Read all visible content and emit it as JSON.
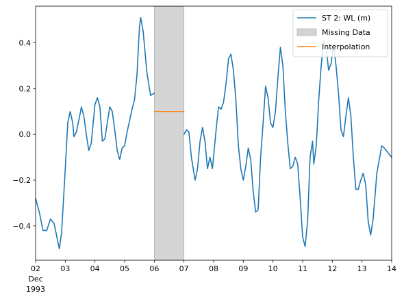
{
  "chart_data": {
    "type": "line",
    "title": "",
    "xlabel": "",
    "ylabel": "",
    "x_ticks": [
      {
        "day": 2,
        "label": "02",
        "sub1": "Dec",
        "sub2": "1993"
      },
      {
        "day": 3,
        "label": "03"
      },
      {
        "day": 4,
        "label": "04"
      },
      {
        "day": 5,
        "label": "05"
      },
      {
        "day": 6,
        "label": "06"
      },
      {
        "day": 7,
        "label": "07"
      },
      {
        "day": 8,
        "label": "08"
      },
      {
        "day": 9,
        "label": "09"
      },
      {
        "day": 10,
        "label": "10"
      },
      {
        "day": 11,
        "label": "11"
      },
      {
        "day": 12,
        "label": "12"
      },
      {
        "day": 13,
        "label": "13"
      },
      {
        "day": 14,
        "label": "14"
      }
    ],
    "y_ticks": [
      {
        "value": -0.4,
        "label": "−0.4"
      },
      {
        "value": -0.2,
        "label": "−0.2"
      },
      {
        "value": 0.0,
        "label": "0.0"
      },
      {
        "value": 0.2,
        "label": "0.2"
      },
      {
        "value": 0.4,
        "label": "0.4"
      }
    ],
    "xlim": [
      "1993-12-02",
      "1993-12-14"
    ],
    "ylim": [
      -0.55,
      0.56
    ],
    "legend_position": "top-right",
    "series": [
      {
        "name": "ST 2: WL (m)",
        "color": "#1f77b4",
        "segments": [
          [
            [
              "1993-12-02 00:00",
              -0.28
            ],
            [
              "1993-12-02 03:00",
              -0.34
            ],
            [
              "1993-12-02 06:00",
              -0.42
            ],
            [
              "1993-12-02 09:00",
              -0.42
            ],
            [
              "1993-12-02 12:00",
              -0.37
            ],
            [
              "1993-12-02 15:00",
              -0.39
            ],
            [
              "1993-12-02 18:00",
              -0.47
            ],
            [
              "1993-12-02 19:12",
              -0.5
            ],
            [
              "1993-12-02 21:00",
              -0.43
            ],
            [
              "1993-12-03 00:00",
              -0.15
            ],
            [
              "1993-12-03 02:00",
              0.05
            ],
            [
              "1993-12-03 04:00",
              0.1
            ],
            [
              "1993-12-03 06:00",
              0.05
            ],
            [
              "1993-12-03 07:00",
              -0.01
            ],
            [
              "1993-12-03 09:00",
              0.01
            ],
            [
              "1993-12-03 12:00",
              0.09
            ],
            [
              "1993-12-03 13:00",
              0.12
            ],
            [
              "1993-12-03 15:00",
              0.08
            ],
            [
              "1993-12-03 17:00",
              0.0
            ],
            [
              "1993-12-03 19:00",
              -0.07
            ],
            [
              "1993-12-03 21:00",
              -0.04
            ],
            [
              "1993-12-04 00:00",
              0.13
            ],
            [
              "1993-12-04 02:00",
              0.16
            ],
            [
              "1993-12-04 04:00",
              0.12
            ],
            [
              "1993-12-04 06:00",
              -0.03
            ],
            [
              "1993-12-04 08:00",
              -0.02
            ],
            [
              "1993-12-04 10:00",
              0.05
            ],
            [
              "1993-12-04 12:00",
              0.12
            ],
            [
              "1993-12-04 14:00",
              0.1
            ],
            [
              "1993-12-04 16:00",
              0.02
            ],
            [
              "1993-12-04 18:00",
              -0.07
            ],
            [
              "1993-12-04 20:00",
              -0.11
            ],
            [
              "1993-12-04 22:00",
              -0.06
            ],
            [
              "1993-12-05 00:00",
              -0.05
            ],
            [
              "1993-12-05 02:00",
              0.01
            ],
            [
              "1993-12-05 04:00",
              0.06
            ],
            [
              "1993-12-05 06:00",
              0.11
            ],
            [
              "1993-12-05 08:00",
              0.15
            ],
            [
              "1993-12-05 10:00",
              0.26
            ],
            [
              "1993-12-05 12:00",
              0.47
            ],
            [
              "1993-12-05 13:00",
              0.51
            ],
            [
              "1993-12-05 15:00",
              0.45
            ],
            [
              "1993-12-05 18:00",
              0.27
            ],
            [
              "1993-12-05 21:00",
              0.17
            ],
            [
              "1993-12-06 00:00",
              0.18
            ]
          ],
          [
            [
              "1993-12-07 00:00",
              0.0
            ],
            [
              "1993-12-07 02:00",
              0.02
            ],
            [
              "1993-12-07 04:00",
              0.01
            ],
            [
              "1993-12-07 06:00",
              -0.1
            ],
            [
              "1993-12-07 09:00",
              -0.2
            ],
            [
              "1993-12-07 11:00",
              -0.15
            ],
            [
              "1993-12-07 13:00",
              -0.03
            ],
            [
              "1993-12-07 15:00",
              0.03
            ],
            [
              "1993-12-07 17:00",
              -0.03
            ],
            [
              "1993-12-07 19:00",
              -0.15
            ],
            [
              "1993-12-07 21:00",
              -0.1
            ],
            [
              "1993-12-07 23:00",
              -0.15
            ],
            [
              "1993-12-08 02:00",
              0.02
            ],
            [
              "1993-12-08 04:00",
              0.12
            ],
            [
              "1993-12-08 06:00",
              0.11
            ],
            [
              "1993-12-08 08:00",
              0.14
            ],
            [
              "1993-12-08 10:00",
              0.22
            ],
            [
              "1993-12-08 12:00",
              0.33
            ],
            [
              "1993-12-08 14:00",
              0.35
            ],
            [
              "1993-12-08 16:00",
              0.28
            ],
            [
              "1993-12-08 18:00",
              0.15
            ],
            [
              "1993-12-08 20:00",
              -0.05
            ],
            [
              "1993-12-08 22:00",
              -0.15
            ],
            [
              "1993-12-09 00:00",
              -0.2
            ],
            [
              "1993-12-09 02:00",
              -0.14
            ],
            [
              "1993-12-09 04:00",
              -0.06
            ],
            [
              "1993-12-09 06:00",
              -0.11
            ],
            [
              "1993-12-09 08:00",
              -0.25
            ],
            [
              "1993-12-09 10:00",
              -0.34
            ],
            [
              "1993-12-09 12:00",
              -0.33
            ],
            [
              "1993-12-09 14:00",
              -0.1
            ],
            [
              "1993-12-09 16:00",
              0.05
            ],
            [
              "1993-12-09 18:00",
              0.21
            ],
            [
              "1993-12-09 20:00",
              0.16
            ],
            [
              "1993-12-09 22:00",
              0.05
            ],
            [
              "1993-12-10 00:00",
              0.03
            ],
            [
              "1993-12-10 02:00",
              0.1
            ],
            [
              "1993-12-10 04:00",
              0.25
            ],
            [
              "1993-12-10 06:00",
              0.38
            ],
            [
              "1993-12-10 08:00",
              0.3
            ],
            [
              "1993-12-10 10:00",
              0.1
            ],
            [
              "1993-12-10 12:00",
              -0.04
            ],
            [
              "1993-12-10 14:00",
              -0.15
            ],
            [
              "1993-12-10 16:00",
              -0.14
            ],
            [
              "1993-12-10 18:00",
              -0.1
            ],
            [
              "1993-12-10 20:00",
              -0.13
            ],
            [
              "1993-12-10 22:00",
              -0.28
            ],
            [
              "1993-12-11 00:00",
              -0.45
            ],
            [
              "1993-12-11 02:00",
              -0.49
            ],
            [
              "1993-12-11 04:00",
              -0.38
            ],
            [
              "1993-12-11 06:00",
              -0.1
            ],
            [
              "1993-12-11 08:00",
              -0.03
            ],
            [
              "1993-12-11 09:00",
              -0.13
            ],
            [
              "1993-12-11 11:00",
              -0.05
            ],
            [
              "1993-12-11 13:00",
              0.15
            ],
            [
              "1993-12-11 15:00",
              0.3
            ],
            [
              "1993-12-11 17:00",
              0.41
            ],
            [
              "1993-12-11 19:00",
              0.38
            ],
            [
              "1993-12-11 21:00",
              0.28
            ],
            [
              "1993-12-11 23:00",
              0.31
            ],
            [
              "1993-12-12 01:00",
              0.39
            ],
            [
              "1993-12-12 03:00",
              0.3
            ],
            [
              "1993-12-12 05:00",
              0.18
            ],
            [
              "1993-12-12 07:00",
              0.02
            ],
            [
              "1993-12-12 09:00",
              -0.01
            ],
            [
              "1993-12-12 11:00",
              0.08
            ],
            [
              "1993-12-12 13:00",
              0.16
            ],
            [
              "1993-12-12 15:00",
              0.08
            ],
            [
              "1993-12-12 17:00",
              -0.1
            ],
            [
              "1993-12-12 19:00",
              -0.24
            ],
            [
              "1993-12-12 21:00",
              -0.24
            ],
            [
              "1993-12-12 23:00",
              -0.2
            ],
            [
              "1993-12-13 01:00",
              -0.17
            ],
            [
              "1993-12-13 03:00",
              -0.22
            ],
            [
              "1993-12-13 05:00",
              -0.38
            ],
            [
              "1993-12-13 07:00",
              -0.44
            ],
            [
              "1993-12-13 09:00",
              -0.37
            ],
            [
              "1993-12-13 12:00",
              -0.17
            ],
            [
              "1993-12-13 14:00",
              -0.11
            ],
            [
              "1993-12-13 16:00",
              -0.05
            ],
            [
              "1993-12-13 18:00",
              -0.06
            ],
            [
              "1993-12-14 00:00",
              -0.1
            ]
          ]
        ]
      },
      {
        "name": "Missing Data",
        "type": "span",
        "color": "#d3d3d3",
        "x_start": "1993-12-06",
        "x_end": "1993-12-07"
      },
      {
        "name": "Interpolation",
        "color": "#ff7f0e",
        "points": [
          [
            "1993-12-06 00:00",
            0.1
          ],
          [
            "1993-12-07 00:00",
            0.1
          ]
        ]
      }
    ]
  }
}
